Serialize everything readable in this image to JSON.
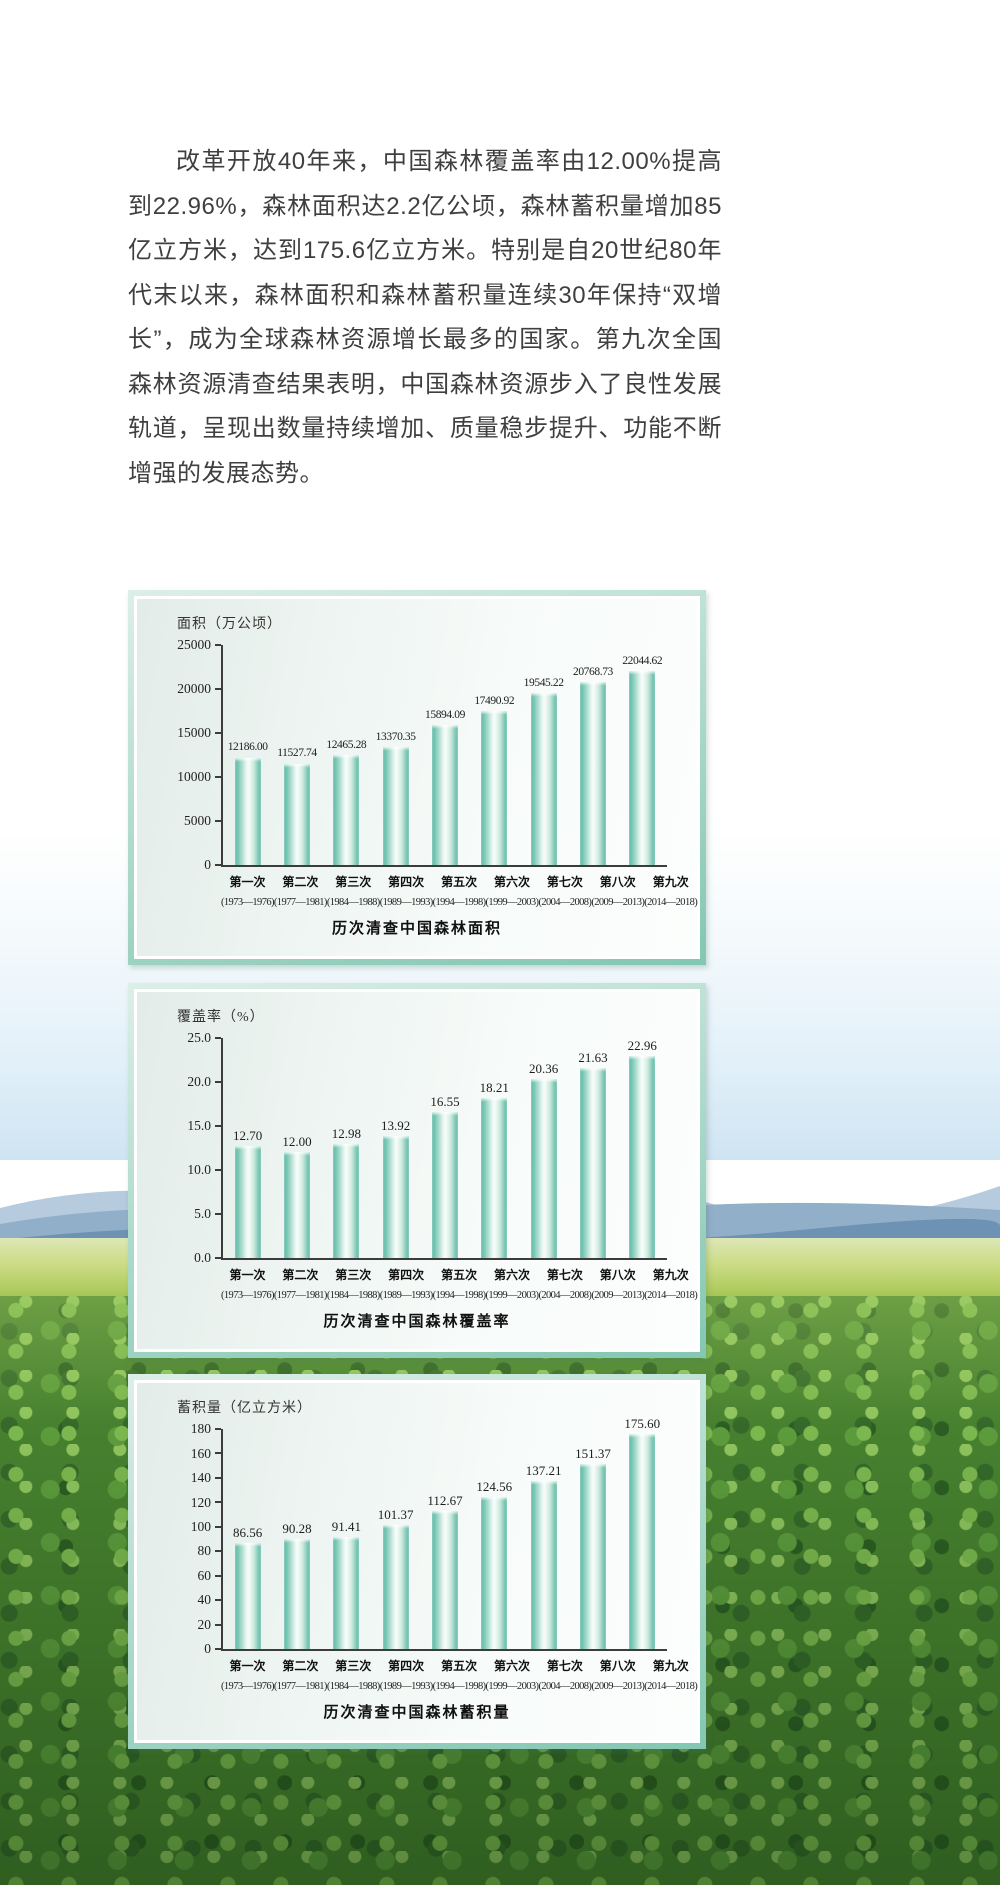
{
  "intro_paragraph": "改革开放40年来，中国森林覆盖率由12.00%提高到22.96%，森林面积达2.2亿公顷，森林蓄积量增加85亿立方米，达到175.6亿立方米。特别是自20世纪80年代末以来，森林面积和森林蓄积量连续30年保持“双增长”，成为全球森林资源增长最多的国家。第九次全国森林资源清查结果表明，中国森林资源步入了良性发展轨道，呈现出数量持续增加、质量稳步提升、功能不断增强的发展态势。",
  "colors": {
    "bar_teal": "#54b5a1",
    "panel_frame_teal": "#83c7b2",
    "axis": "#3c3c3c"
  },
  "chart_data": [
    {
      "type": "bar",
      "title": "历次清查中国森林面积",
      "ylabel": "面积（万公顷）",
      "categories": [
        "第一次",
        "第二次",
        "第三次",
        "第四次",
        "第五次",
        "第六次",
        "第七次",
        "第八次",
        "第九次"
      ],
      "category_years": [
        "(1973—1976)",
        "(1977—1981)",
        "(1984—1988)",
        "(1989—1993)",
        "(1994—1998)",
        "(1999—2003)",
        "(2004—2008)",
        "(2009—2013)",
        "(2014—2018)"
      ],
      "values": [
        12186.0,
        11527.74,
        12465.28,
        13370.35,
        15894.09,
        17490.92,
        19545.22,
        20768.73,
        22044.62
      ],
      "value_labels": [
        "12186.00",
        "11527.74",
        "12465.28",
        "13370.35",
        "15894.09",
        "17490.92",
        "19545.22",
        "20768.73",
        "22044.62"
      ],
      "yticks": [
        25000,
        20000,
        15000,
        10000,
        5000,
        0
      ],
      "ytick_labels": [
        "25000",
        "20000",
        "15000",
        "10000",
        "5000",
        "0"
      ],
      "ylim": [
        0,
        25000
      ],
      "grid": false,
      "legend": null,
      "bar_color": "#54b5a1"
    },
    {
      "type": "bar",
      "title": "历次清查中国森林覆盖率",
      "ylabel": "覆盖率（%）",
      "categories": [
        "第一次",
        "第二次",
        "第三次",
        "第四次",
        "第五次",
        "第六次",
        "第七次",
        "第八次",
        "第九次"
      ],
      "category_years": [
        "(1973—1976)",
        "(1977—1981)",
        "(1984—1988)",
        "(1989—1993)",
        "(1994—1998)",
        "(1999—2003)",
        "(2004—2008)",
        "(2009—2013)",
        "(2014—2018)"
      ],
      "values": [
        12.7,
        12.0,
        12.98,
        13.92,
        16.55,
        18.21,
        20.36,
        21.63,
        22.96
      ],
      "value_labels": [
        "12.70",
        "12.00",
        "12.98",
        "13.92",
        "16.55",
        "18.21",
        "20.36",
        "21.63",
        "22.96"
      ],
      "yticks": [
        25.0,
        20.0,
        15.0,
        10.0,
        5.0,
        0.0
      ],
      "ytick_labels": [
        "25.0",
        "20.0",
        "15.0",
        "10.0",
        "5.0",
        "0.0"
      ],
      "ylim": [
        0,
        25
      ],
      "grid": false,
      "legend": null,
      "bar_color": "#54b5a1"
    },
    {
      "type": "bar",
      "title": "历次清查中国森林蓄积量",
      "ylabel": "蓄积量（亿立方米）",
      "categories": [
        "第一次",
        "第二次",
        "第三次",
        "第四次",
        "第五次",
        "第六次",
        "第七次",
        "第八次",
        "第九次"
      ],
      "category_years": [
        "(1973—1976)",
        "(1977—1981)",
        "(1984—1988)",
        "(1989—1993)",
        "(1994—1998)",
        "(1999—2003)",
        "(2004—2008)",
        "(2009—2013)",
        "(2014—2018)"
      ],
      "values": [
        86.56,
        90.28,
        91.41,
        101.37,
        112.67,
        124.56,
        137.21,
        151.37,
        175.6
      ],
      "value_labels": [
        "86.56",
        "90.28",
        "91.41",
        "101.37",
        "112.67",
        "124.56",
        "137.21",
        "151.37",
        "175.60"
      ],
      "yticks": [
        180,
        160,
        140,
        120,
        100,
        80,
        60,
        40,
        20,
        0
      ],
      "ytick_labels": [
        "180",
        "160",
        "140",
        "120",
        "100",
        "80",
        "60",
        "40",
        "20",
        "0"
      ],
      "ylim": [
        0,
        180
      ],
      "grid": false,
      "legend": null,
      "bar_color": "#54b5a1"
    }
  ]
}
